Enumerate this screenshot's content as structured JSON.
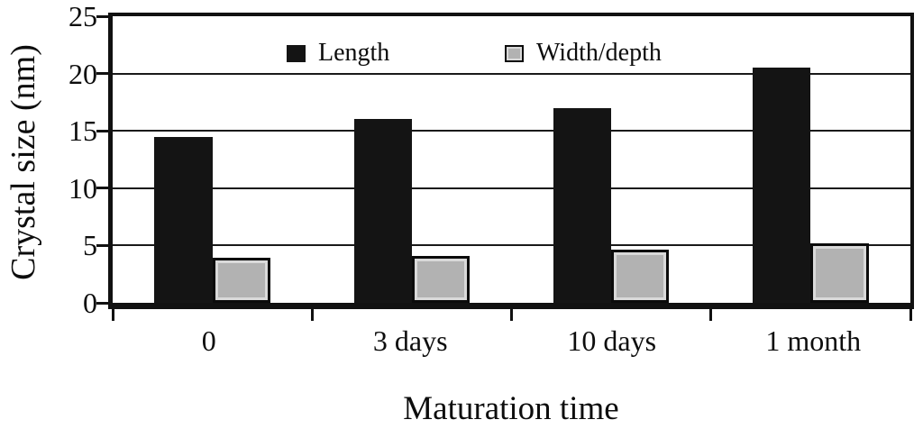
{
  "figure": {
    "background": "#ffffff",
    "text_color": "#0d0d0d"
  },
  "chart_data": {
    "type": "bar",
    "title": "",
    "categories": [
      "0",
      "3 days",
      "10 days",
      "1 month"
    ],
    "series": [
      {
        "name": "Length",
        "color": "#141414",
        "values": [
          14.5,
          16,
          17,
          20.5
        ]
      },
      {
        "name": "Width/depth",
        "color": "#b2b2b2",
        "border_color": "#0b0b0b",
        "bevel_color": "#d9d9d9",
        "values": [
          3.9,
          4.1,
          4.6,
          5.2
        ]
      }
    ],
    "xlabel": "Maturation time",
    "ylabel": "Crystal size (nm)",
    "ylim": [
      0,
      25
    ],
    "yticks": [
      0,
      5,
      10,
      15,
      20,
      25
    ],
    "grid": "horizontal",
    "gridline_color": "#1a1a1a",
    "legend_position": "top-inside"
  }
}
